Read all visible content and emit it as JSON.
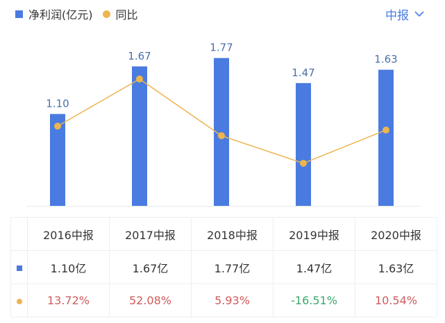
{
  "legend": {
    "bar_label": "净利润(亿元)",
    "line_label": "同比"
  },
  "period_selector": {
    "label": "中报",
    "icon": "chevron-down-icon"
  },
  "colors": {
    "bar": "#4a7be0",
    "line": "#ecb550",
    "positive": "#d05a5a",
    "negative": "#3aa76d"
  },
  "chart_data": {
    "type": "bar+line",
    "categories": [
      "2016中报",
      "2017中报",
      "2018中报",
      "2019中报",
      "2020中报"
    ],
    "series": [
      {
        "name": "净利润(亿元)",
        "type": "bar",
        "values": [
          1.1,
          1.67,
          1.77,
          1.47,
          1.63
        ],
        "labels": [
          "1.10",
          "1.67",
          "1.77",
          "1.47",
          "1.63"
        ]
      },
      {
        "name": "同比",
        "type": "line",
        "values": [
          13.72,
          52.08,
          5.93,
          -16.51,
          10.54
        ]
      }
    ],
    "grid": false
  },
  "table": {
    "headers": [
      "2016中报",
      "2017中报",
      "2018中报",
      "2019中报",
      "2020中报"
    ],
    "profit_row": [
      "1.10亿",
      "1.67亿",
      "1.77亿",
      "1.47亿",
      "1.63亿"
    ],
    "yoy_row": [
      "13.72%",
      "52.08%",
      "5.93%",
      "-16.51%",
      "10.54%"
    ]
  }
}
